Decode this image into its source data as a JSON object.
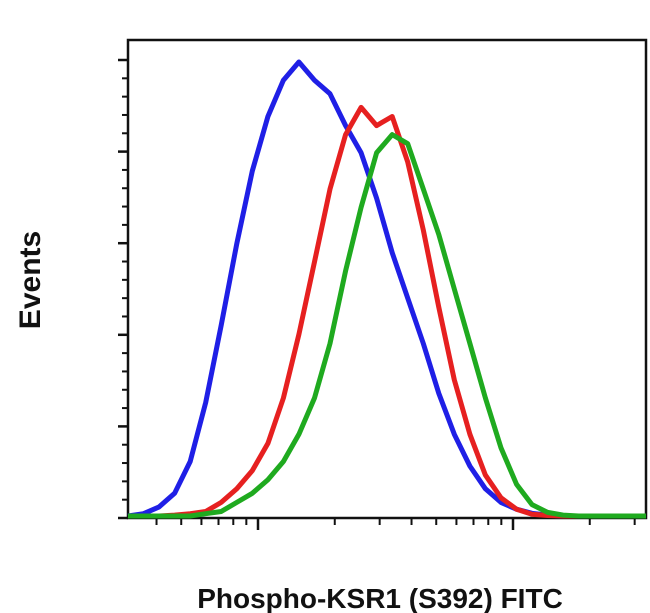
{
  "chart_data": {
    "type": "line",
    "title": "",
    "xlabel": "Phospho-KSR1 (S392) FITC",
    "ylabel": "Events",
    "x_scale": "log",
    "grid": false,
    "legend": "none",
    "series": [
      {
        "color": "#1f1fe6",
        "x": [
          0,
          3,
          6,
          9,
          12,
          15,
          18,
          21,
          24,
          27,
          30,
          33,
          36,
          39,
          42,
          45,
          48,
          51,
          54,
          57,
          60,
          63,
          66,
          69,
          72,
          75,
          78,
          81,
          84,
          87,
          90,
          93,
          96,
          99,
          100
        ],
        "y": [
          0.0,
          0.5,
          2,
          5,
          12,
          25,
          42,
          60,
          76,
          88,
          96,
          100,
          96,
          93,
          86,
          80,
          70,
          58,
          48,
          38,
          27,
          18,
          11,
          6,
          3,
          1.5,
          0.6,
          0.2,
          0,
          0,
          0,
          0,
          0,
          0,
          0
        ]
      },
      {
        "color": "#e62020",
        "x": [
          0,
          3,
          6,
          9,
          12,
          15,
          18,
          21,
          24,
          27,
          30,
          33,
          36,
          39,
          42,
          45,
          48,
          51,
          54,
          57,
          60,
          63,
          66,
          69,
          72,
          75,
          78,
          81,
          84,
          87,
          90,
          93,
          96,
          99,
          100
        ],
        "y": [
          0,
          0,
          0,
          0.2,
          0.5,
          1,
          3,
          6,
          10,
          16,
          26,
          40,
          56,
          72,
          84,
          90,
          86,
          88,
          78,
          63,
          46,
          30,
          18,
          9,
          4,
          1.5,
          0.4,
          0.1,
          0,
          0,
          0,
          0,
          0,
          0,
          0
        ]
      },
      {
        "color": "#1faa1f",
        "x": [
          0,
          3,
          6,
          9,
          12,
          15,
          18,
          21,
          24,
          27,
          30,
          33,
          36,
          39,
          42,
          45,
          48,
          51,
          54,
          57,
          60,
          63,
          66,
          69,
          72,
          75,
          78,
          81,
          84,
          87,
          90,
          93,
          96,
          99,
          100
        ],
        "y": [
          0,
          0,
          0,
          0,
          0,
          0.5,
          1,
          3,
          5,
          8,
          12,
          18,
          26,
          38,
          54,
          68,
          80,
          84,
          82,
          72,
          62,
          50,
          38,
          26,
          15,
          7,
          2.5,
          0.8,
          0.2,
          0,
          0,
          0,
          0,
          0,
          0
        ]
      }
    ]
  }
}
